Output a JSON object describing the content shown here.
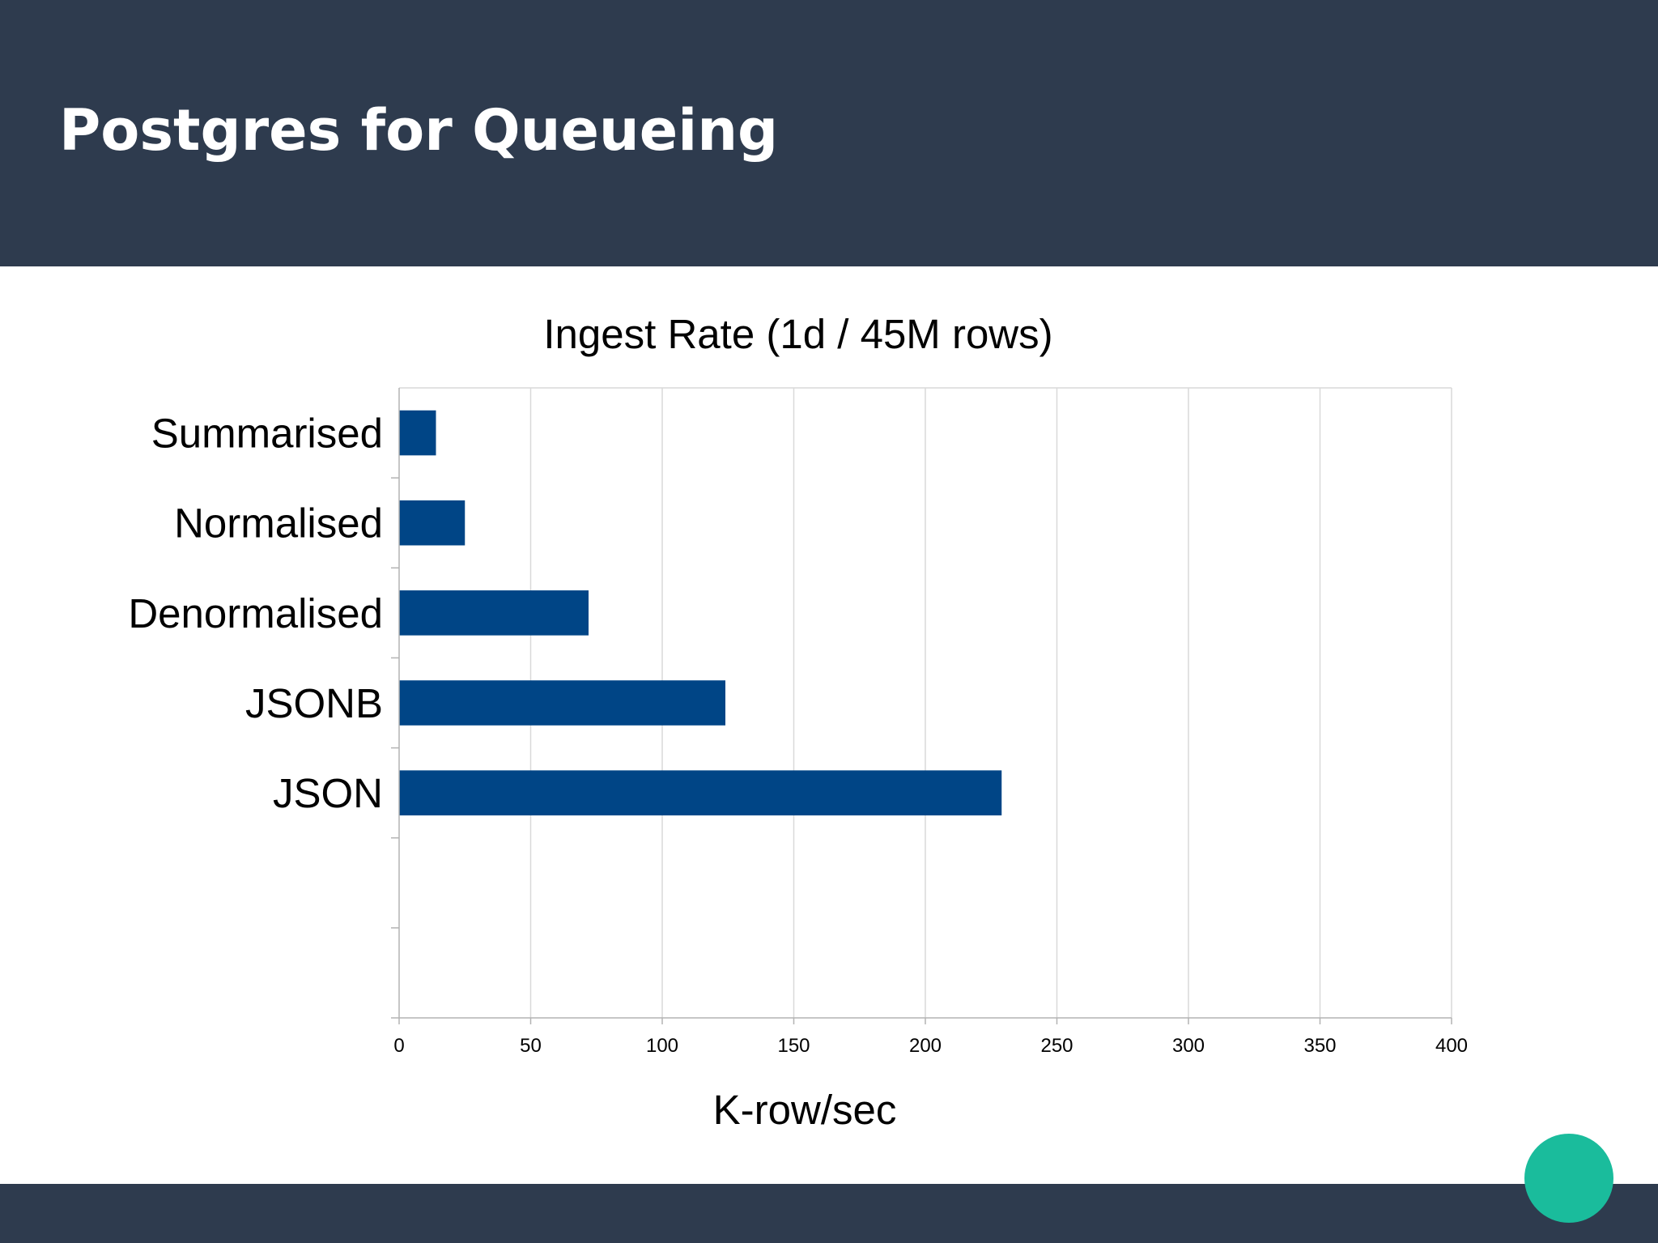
{
  "slide": {
    "title": "Postgres for Queueing"
  },
  "colors": {
    "header": "#2e3b4e",
    "footer": "#2e3b4e",
    "accent_dot": "#1abc9c",
    "bar": "#004586"
  },
  "chart_data": {
    "type": "bar",
    "orientation": "horizontal",
    "title": "Ingest Rate (1d / 45M rows)",
    "xlabel": "K-row/sec",
    "ylabel": "",
    "categories": [
      "Summarised",
      "Normalised",
      "Denormalised",
      "JSONB",
      "JSON"
    ],
    "values": [
      14,
      25,
      72,
      124,
      229
    ],
    "xlim": [
      0,
      400
    ],
    "xticks": [
      0,
      50,
      100,
      150,
      200,
      250,
      300,
      350,
      400
    ],
    "category_slots": 7,
    "grid": "vertical",
    "legend": "none"
  }
}
